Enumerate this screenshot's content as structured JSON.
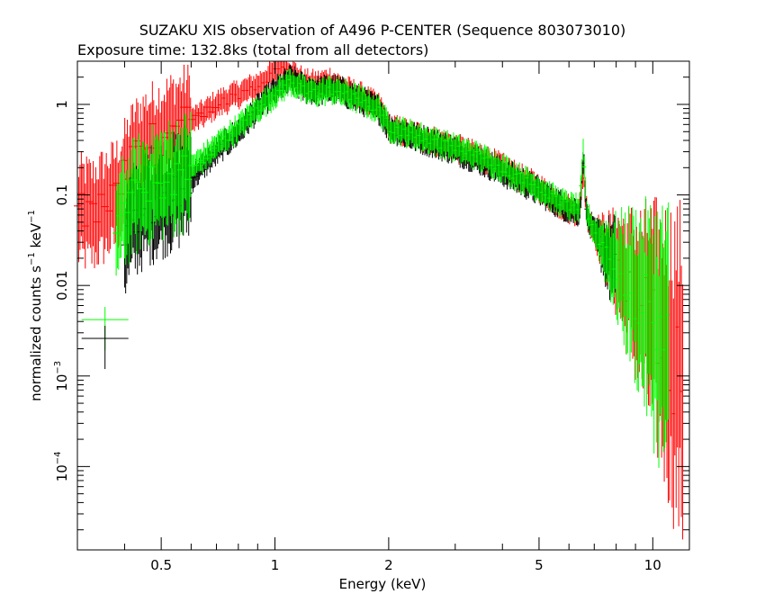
{
  "chart_data": {
    "type": "scatter",
    "title": "SUZAKU XIS observation of A496 P-CENTER (Sequence 803073010)",
    "subtitle": "Exposure time: 132.8ks (total from all detectors)",
    "xlabel": "Energy (keV)",
    "ylabel": {
      "base": "normalized counts s",
      "sup1": "−1",
      "mid": " keV",
      "sup2": "−1"
    },
    "x_scale": "log",
    "y_scale": "log",
    "xlim": [
      0.3,
      12.5
    ],
    "ylim": [
      1.2e-05,
      3.0
    ],
    "x_ticks": [
      {
        "value": 0.5,
        "label": "0.5"
      },
      {
        "value": 1,
        "label": "1"
      },
      {
        "value": 2,
        "label": "2"
      },
      {
        "value": 5,
        "label": "5"
      },
      {
        "value": 10,
        "label": "10"
      }
    ],
    "y_ticks": [
      {
        "value": 1,
        "label": "1",
        "sup": ""
      },
      {
        "value": 0.1,
        "label": "0.1",
        "sup": ""
      },
      {
        "value": 0.01,
        "label": "0.01",
        "sup": ""
      },
      {
        "value": 0.001,
        "label": "10",
        "sup": "−3"
      },
      {
        "value": 0.0001,
        "label": "10",
        "sup": "−4"
      }
    ],
    "grid": false,
    "series": [
      {
        "color": "#ff0000",
        "x": [
          0.3,
          0.33,
          0.36,
          0.38,
          0.4,
          0.42,
          0.45,
          0.5,
          0.55,
          0.6,
          0.65,
          0.7,
          0.8,
          0.9,
          1.0,
          1.05,
          1.1,
          1.2,
          1.3,
          1.4,
          1.5,
          1.7,
          1.9,
          2.0,
          2.5,
          3.0,
          3.5,
          4.0,
          4.5,
          5.0,
          5.5,
          6.0,
          6.4,
          6.55,
          6.7,
          7.0,
          8.0,
          9.0,
          10.0,
          11.0,
          12.0
        ],
        "y": [
          0.065,
          0.06,
          0.08,
          0.095,
          0.15,
          0.25,
          0.35,
          0.45,
          0.55,
          0.65,
          0.8,
          1.0,
          1.3,
          1.6,
          2.3,
          2.7,
          2.3,
          1.7,
          1.65,
          1.8,
          1.5,
          1.2,
          0.9,
          0.55,
          0.42,
          0.33,
          0.26,
          0.2,
          0.15,
          0.12,
          0.085,
          0.07,
          0.065,
          0.2,
          0.06,
          0.04,
          0.018,
          0.008,
          0.004,
          0.0018,
          0.0009
        ]
      },
      {
        "color": "#000000",
        "x": [
          0.4,
          0.42,
          0.45,
          0.5,
          0.55,
          0.6,
          0.65,
          0.7,
          0.8,
          0.9,
          1.0,
          1.1,
          1.2,
          1.3,
          1.4,
          1.5,
          1.7,
          1.9,
          2.0,
          2.5,
          3.0,
          3.5,
          4.0,
          4.5,
          5.0,
          5.5,
          6.0,
          6.4,
          6.55,
          6.7,
          7.0,
          8.0
        ],
        "y": [
          0.03,
          0.05,
          0.07,
          0.09,
          0.11,
          0.15,
          0.22,
          0.3,
          0.5,
          0.9,
          1.4,
          1.9,
          1.5,
          1.4,
          1.5,
          1.4,
          1.1,
          0.85,
          0.55,
          0.4,
          0.31,
          0.24,
          0.18,
          0.14,
          0.11,
          0.085,
          0.07,
          0.065,
          0.27,
          0.055,
          0.038,
          0.015
        ]
      },
      {
        "color": "#00ff00",
        "x": [
          0.38,
          0.42,
          0.45,
          0.5,
          0.55,
          0.6,
          0.65,
          0.7,
          0.8,
          0.9,
          1.0,
          1.1,
          1.2,
          1.3,
          1.4,
          1.5,
          1.7,
          1.9,
          2.0,
          2.5,
          3.0,
          3.5,
          4.0,
          4.5,
          5.0,
          5.5,
          6.0,
          6.4,
          6.55,
          6.7,
          7.0,
          8.0,
          9.0,
          10.0,
          11.0
        ],
        "y": [
          0.045,
          0.09,
          0.12,
          0.14,
          0.16,
          0.2,
          0.26,
          0.35,
          0.55,
          0.9,
          1.3,
          1.8,
          1.4,
          1.35,
          1.45,
          1.35,
          1.1,
          0.85,
          0.56,
          0.42,
          0.33,
          0.26,
          0.2,
          0.15,
          0.12,
          0.09,
          0.075,
          0.07,
          0.3,
          0.06,
          0.04,
          0.016,
          0.008,
          0.004,
          0.002
        ]
      }
    ],
    "corner_markers": [
      {
        "color": "#00ff00",
        "x": 0.355,
        "y": 0.0042
      },
      {
        "color": "#000000",
        "x": 0.355,
        "y": 0.0026
      }
    ]
  }
}
